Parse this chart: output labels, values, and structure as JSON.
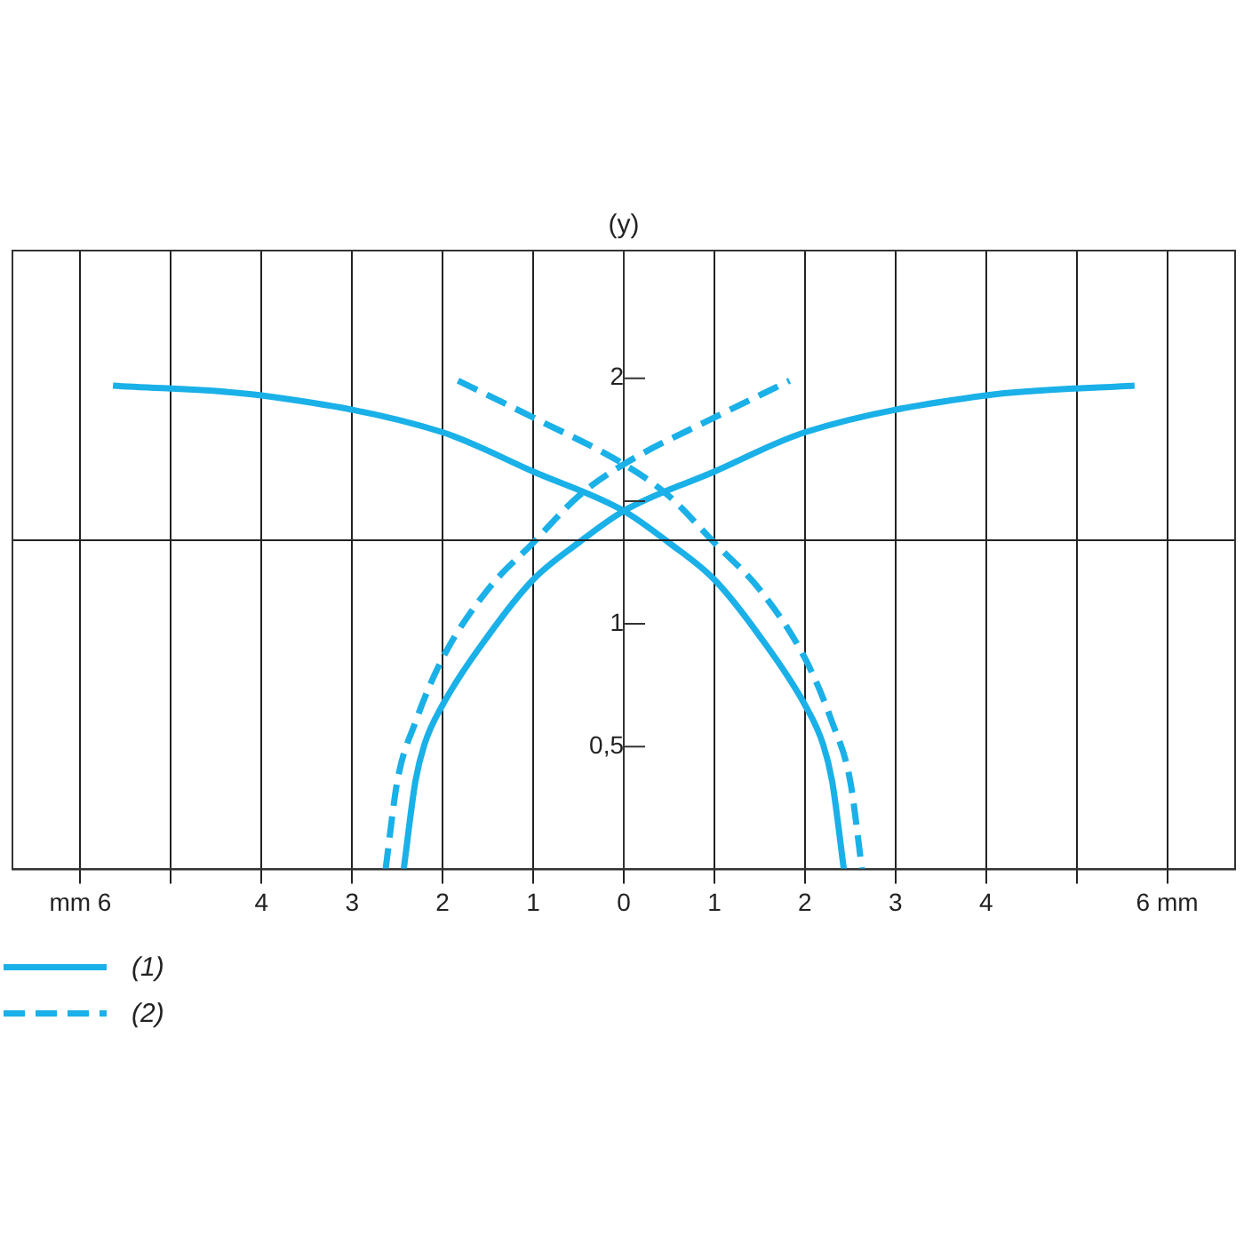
{
  "chart_data": {
    "type": "line",
    "ylabel": "(y)",
    "xlim": [
      -6.75,
      6.75
    ],
    "ylim": [
      0,
      2.52
    ],
    "xticks": [
      {
        "value": -6,
        "label": "mm 6"
      },
      {
        "value": -5,
        "label": null
      },
      {
        "value": -4,
        "label": "4"
      },
      {
        "value": -3,
        "label": "3"
      },
      {
        "value": -2,
        "label": "2"
      },
      {
        "value": -1,
        "label": "1"
      },
      0,
      1,
      2,
      3,
      4,
      {
        "value": 5,
        "label": null
      },
      {
        "value": 6,
        "label": "6 mm"
      }
    ],
    "yticks": [
      {
        "value": 0.5,
        "label": "0,5"
      },
      1,
      {
        "value": 1.5,
        "label": null
      },
      2
    ],
    "grid": "x",
    "legend": "bottom left",
    "marker": "none",
    "ref_lines": [
      {
        "axis": "y",
        "value": 1.34,
        "color": "#222222"
      }
    ],
    "series": [
      {
        "name": "(1)",
        "color": "#1ab0e8",
        "line_style": "solid",
        "x": [
          -5.64,
          -4,
          -2,
          -1,
          0,
          0.5,
          1,
          1.5,
          2,
          2.2,
          2.3,
          2.43,
          null,
          -2.43,
          -2.3,
          -2.2,
          -2,
          -1.5,
          -1,
          -0.5,
          0,
          1,
          2,
          4,
          5.64
        ],
        "values": [
          1.97,
          1.93,
          1.78,
          1.62,
          1.46,
          1.33,
          1.18,
          0.95,
          0.67,
          0.51,
          0.36,
          0,
          null,
          0,
          0.36,
          0.51,
          0.67,
          0.95,
          1.18,
          1.33,
          1.46,
          1.62,
          1.78,
          1.93,
          1.97
        ]
      },
      {
        "name": "(2)",
        "color": "#1ab0e8",
        "line_style": "dashed",
        "x": [
          -1.83,
          -1,
          0,
          0.5,
          1,
          1.5,
          2,
          2.3,
          2.5,
          2.63,
          null,
          -2.63,
          -2.5,
          -2.3,
          -2,
          -1.5,
          -1,
          -0.5,
          0,
          1,
          1.83
        ],
        "values": [
          1.99,
          1.84,
          1.65,
          1.52,
          1.33,
          1.14,
          0.86,
          0.6,
          0.36,
          0,
          null,
          0,
          0.36,
          0.6,
          0.86,
          1.14,
          1.33,
          1.52,
          1.65,
          1.84,
          1.99
        ]
      }
    ]
  }
}
